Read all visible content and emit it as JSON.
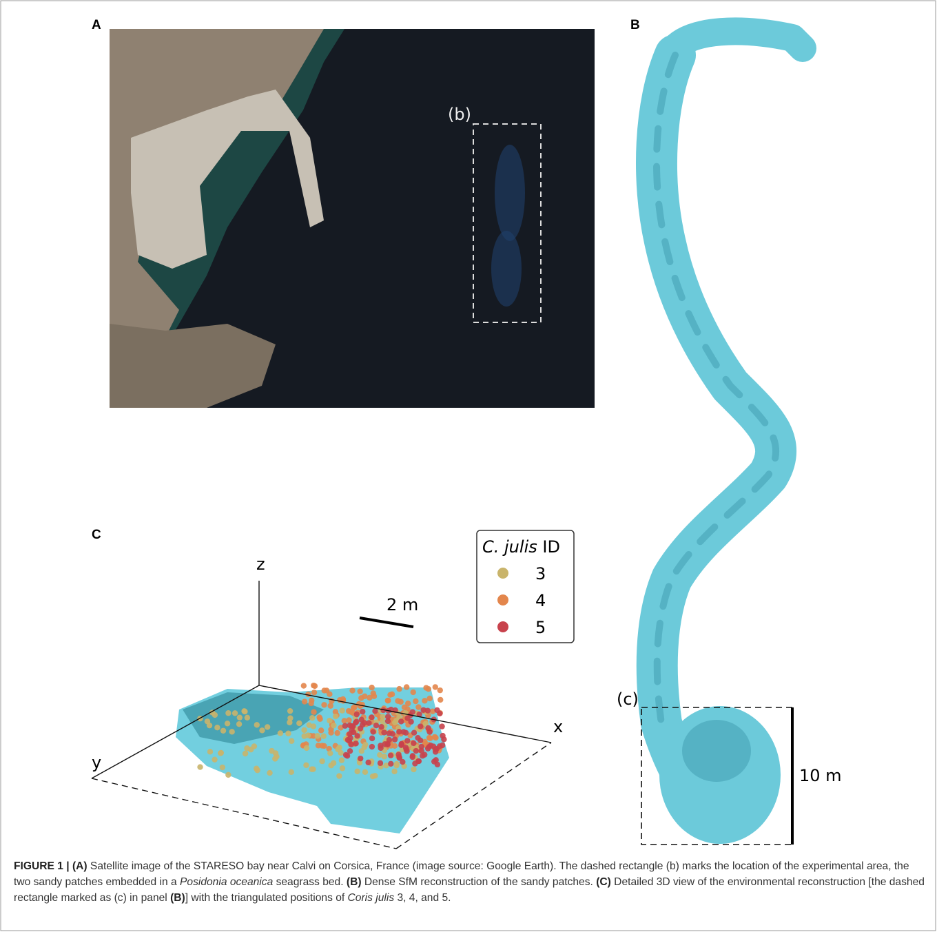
{
  "panels": {
    "a": {
      "label": "A",
      "box_label": "(b)"
    },
    "b": {
      "label": "B",
      "box_label": "(c)",
      "scale_label": "10 m"
    },
    "c": {
      "label": "C",
      "axis_labels": {
        "x": "x",
        "y": "y",
        "z": "z"
      },
      "scale_label": "2 m",
      "legend": {
        "title": [
          {
            "text": "C. julis",
            "style": "italic"
          },
          {
            "text": " ID",
            "style": "normal"
          }
        ],
        "items": [
          {
            "label": "3",
            "color": "#c9b46b"
          },
          {
            "label": "4",
            "color": "#e3864c"
          },
          {
            "label": "5",
            "color": "#c8424c"
          }
        ]
      }
    }
  },
  "caption": [
    {
      "text": "FIGURE 1 | (A)",
      "style": "bold"
    },
    {
      "text": " Satellite image of the STARESO bay near Calvi on Corsica, France (image source: Google Earth). The dashed rectangle (b) marks the location of the experimental area, the two sandy patches embedded in a ",
      "style": "normal"
    },
    {
      "text": "Posidonia oceanica",
      "style": "italic"
    },
    {
      "text": " seagrass bed. ",
      "style": "normal"
    },
    {
      "text": "(B)",
      "style": "bold"
    },
    {
      "text": " Dense SfM reconstruction of the sandy patches. ",
      "style": "normal"
    },
    {
      "text": "(C)",
      "style": "bold"
    },
    {
      "text": " Detailed 3D view of the environmental reconstruction [the dashed rectangle marked as (c) in panel ",
      "style": "normal"
    },
    {
      "text": "(B)",
      "style": "bold"
    },
    {
      "text": "] with the triangulated positions of ",
      "style": "normal"
    },
    {
      "text": "Coris julis",
      "style": "italic"
    },
    {
      "text": " 3, 4, and 5.",
      "style": "normal"
    }
  ]
}
